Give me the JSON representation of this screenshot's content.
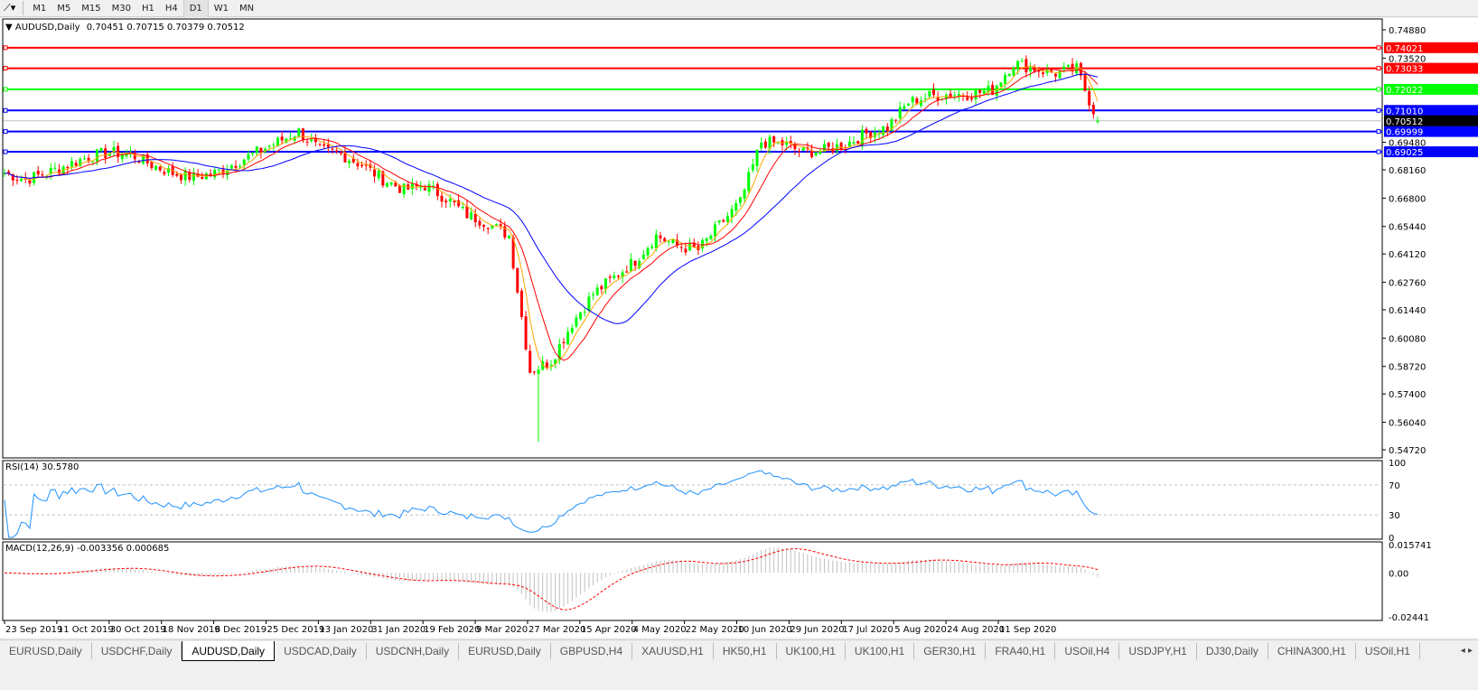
{
  "toolbar": {
    "timeframes": [
      "M1",
      "M5",
      "M15",
      "M30",
      "H1",
      "H4",
      "D1",
      "W1",
      "MN"
    ],
    "active": "D1"
  },
  "header": {
    "symbol": "AUDUSD,Daily",
    "ohlc": "0.70451 0.70715 0.70379 0.70512"
  },
  "price_axis": {
    "ticks": [
      "0.74880",
      "0.73520",
      "0.69480",
      "0.68160",
      "0.66800",
      "0.65440",
      "0.64120",
      "0.62760",
      "0.61440",
      "0.60080",
      "0.58720",
      "0.57400",
      "0.56040",
      "0.54720"
    ],
    "tick_values": [
      0.7488,
      0.7352,
      0.6948,
      0.6816,
      0.668,
      0.6544,
      0.6412,
      0.6276,
      0.6144,
      0.6008,
      0.5872,
      0.574,
      0.5604,
      0.5472
    ],
    "current": "0.70512"
  },
  "levels": [
    {
      "label": "0.74021",
      "value": 0.74021,
      "color": "#ff0000"
    },
    {
      "label": "0.73033",
      "value": 0.73033,
      "color": "#ff0000"
    },
    {
      "label": "0.72022",
      "value": 0.72022,
      "color": "#00ff00"
    },
    {
      "label": "0.71010",
      "value": 0.7101,
      "color": "#0000ff"
    },
    {
      "label": "0.69999",
      "value": 0.69999,
      "color": "#0000ff"
    },
    {
      "label": "0.69025",
      "value": 0.69025,
      "color": "#0000ff"
    }
  ],
  "rsi": {
    "label": "RSI(14) 30.5780",
    "ticks": [
      "100",
      "70",
      "30",
      "0"
    ]
  },
  "macd": {
    "label": "MACD(12,26,9) -0.003356 0.000685",
    "ticks": [
      "0.015741",
      "0.00",
      "-0.02441"
    ]
  },
  "date_axis": [
    "23 Sep 2019",
    "11 Oct 2019",
    "30 Oct 2019",
    "18 Nov 2019",
    "6 Dec 2019",
    "25 Dec 2019",
    "13 Jan 2020",
    "31 Jan 2020",
    "19 Feb 2020",
    "9 Mar 2020",
    "27 Mar 2020",
    "15 Apr 2020",
    "4 May 2020",
    "22 May 2020",
    "10 Jun 2020",
    "29 Jun 2020",
    "17 Jul 2020",
    "5 Aug 2020",
    "24 Aug 2020",
    "11 Sep 2020"
  ],
  "tabs": [
    "EURUSD,Daily",
    "USDCHF,Daily",
    "AUDUSD,Daily",
    "USDCAD,Daily",
    "USDCNH,Daily",
    "EURUSD,Daily",
    "GBPUSD,H4",
    "XAUUSD,H1",
    "HK50,H1",
    "UK100,H1",
    "UK100,H1",
    "GER30,H1",
    "FRA40,H1",
    "USOil,H4",
    "USDJPY,H1",
    "DJ30,Daily",
    "CHINA300,H1",
    "USOil,H1"
  ],
  "active_tab": "AUDUSD,Daily",
  "colors": {
    "bull": "#00ff00",
    "bear": "#ff0000",
    "ma_fast": "#ffa500",
    "ma_mid": "#ff0000",
    "ma_slow": "#0000ff",
    "rsi": "#1e90ff",
    "macd_signal": "#ff0000",
    "macd_hist": "#c0c0c0"
  },
  "chart_data": {
    "type": "candlestick",
    "symbol": "AUDUSD",
    "timeframe": "Daily",
    "weekly_closes": [
      0.68,
      0.677,
      0.68,
      0.684,
      0.688,
      0.69,
      0.689,
      0.684,
      0.68,
      0.678,
      0.68,
      0.685,
      0.69,
      0.695,
      0.7,
      0.691,
      0.689,
      0.684,
      0.677,
      0.672,
      0.674,
      0.668,
      0.66,
      0.656,
      0.65,
      0.585,
      0.59,
      0.608,
      0.622,
      0.63,
      0.638,
      0.65,
      0.645,
      0.643,
      0.655,
      0.666,
      0.695,
      0.694,
      0.69,
      0.691,
      0.694,
      0.699,
      0.702,
      0.714,
      0.717,
      0.718,
      0.718,
      0.72,
      0.733,
      0.73,
      0.728,
      0.73,
      0.705
    ],
    "low": 0.551,
    "last": {
      "open": 0.70451,
      "high": 0.70715,
      "low": 0.70379,
      "close": 0.70512
    },
    "ylim": [
      0.5472,
      0.7488
    ]
  }
}
